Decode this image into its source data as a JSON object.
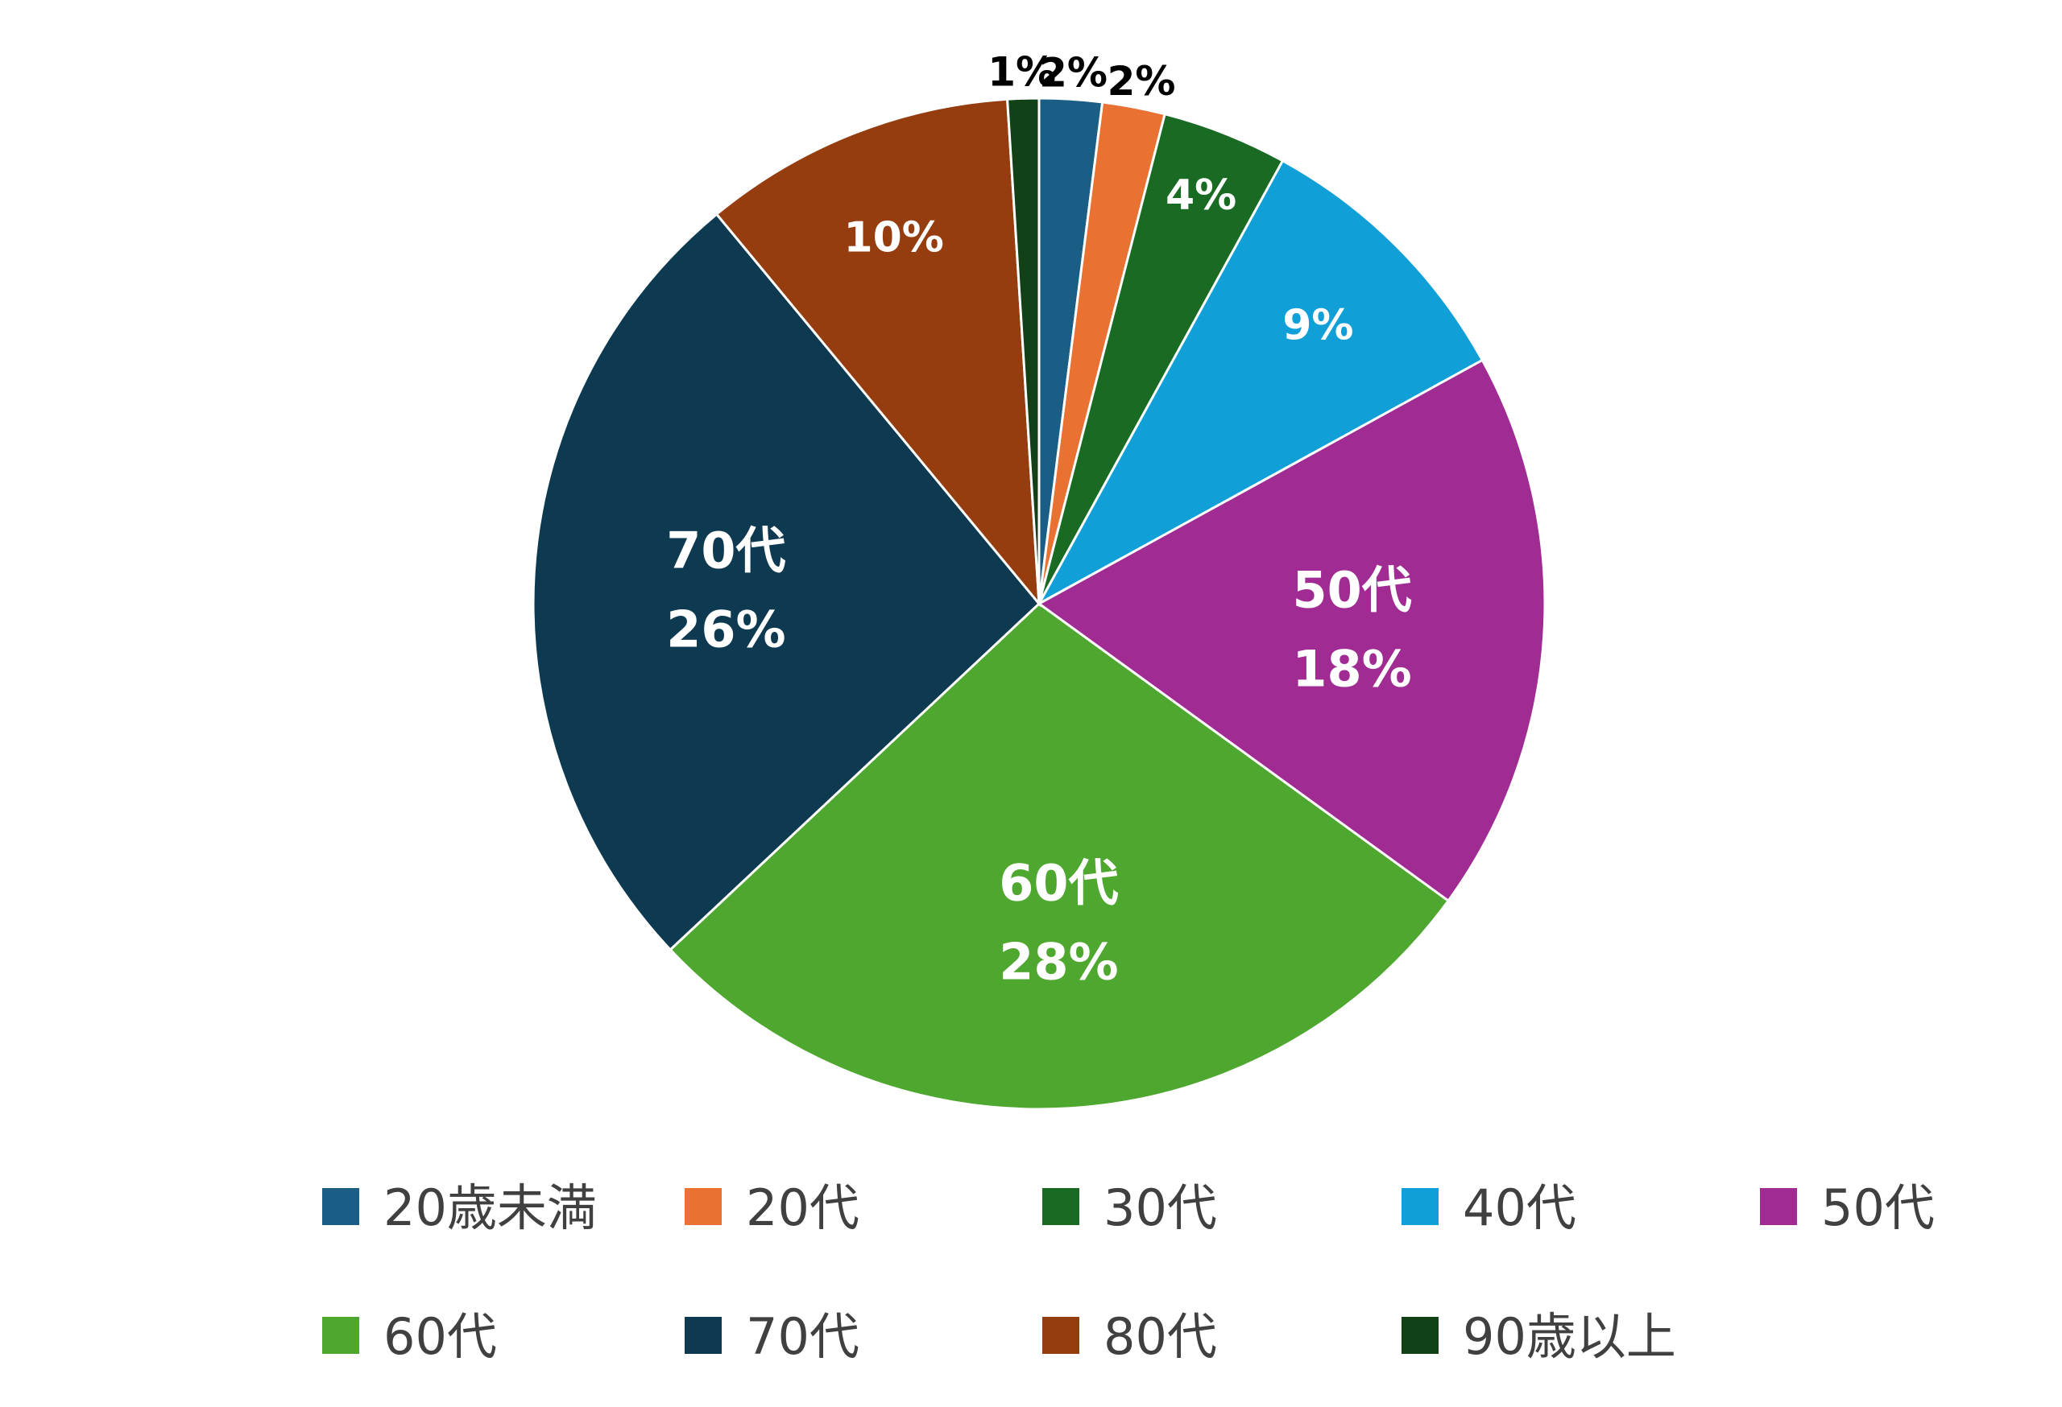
{
  "chart_data": {
    "type": "pie",
    "title": "",
    "legend_position": "bottom",
    "slices": [
      {
        "label": "20歳未満",
        "value": 2,
        "display": "2%",
        "color": "#1a5e85"
      },
      {
        "label": "20代",
        "value": 2,
        "display": "2%",
        "color": "#e97131"
      },
      {
        "label": "30代",
        "value": 4,
        "display": "4%",
        "color": "#196b24"
      },
      {
        "label": "40代",
        "value": 9,
        "display": "9%",
        "color": "#119fd8"
      },
      {
        "label": "50代",
        "value": 18,
        "display": "18%",
        "color": "#a02b93",
        "category_label": "50代"
      },
      {
        "label": "60代",
        "value": 28,
        "display": "28%",
        "color": "#4ea72e",
        "category_label": "60代"
      },
      {
        "label": "70代",
        "value": 26,
        "display": "26%",
        "color": "#0e3a51",
        "category_label": "70代"
      },
      {
        "label": "80代",
        "value": 10,
        "display": "10%",
        "color": "#953d0f"
      },
      {
        "label": "90歳以上",
        "value": 1,
        "display": "1%",
        "color": "#124017"
      }
    ]
  }
}
